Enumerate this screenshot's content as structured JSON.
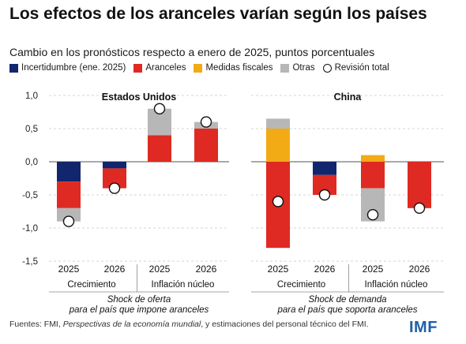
{
  "title": "Los efectos de los aranceles varían según los países",
  "subtitle": "Cambio en los pronósticos respecto a enero de 2025, puntos porcentuales",
  "legend": [
    {
      "label": "Incertidumbre (ene. 2025)",
      "color": "#12266e",
      "shape": "square"
    },
    {
      "label": "Aranceles",
      "color": "#de2a22",
      "shape": "square"
    },
    {
      "label": "Medidas fiscales",
      "color": "#f2ab14",
      "shape": "square"
    },
    {
      "label": "Otras",
      "color": "#b7b7b7",
      "shape": "square"
    },
    {
      "label": "Revisión total",
      "color": "#ffffff",
      "shape": "circle"
    }
  ],
  "source": {
    "prefix": "Fuentes: FMI, ",
    "italic": "Perspectivas de la economía mundial",
    "suffix": ", y estimaciones del personal técnico del FMI."
  },
  "logo": "IMF",
  "chart_data": {
    "type": "bar",
    "stacked": true,
    "ylim": [
      -1.5,
      1.0
    ],
    "yticks": [
      "1,0",
      "0,5",
      "0,0",
      "-0,5",
      "-1,0",
      "-1,5"
    ],
    "grid": true,
    "legend_position": "top",
    "series_names": [
      "Incertidumbre (ene. 2025)",
      "Aranceles",
      "Medidas fiscales",
      "Otras"
    ],
    "total_name": "Revisión total",
    "panels": [
      {
        "title": "Estados Unidos",
        "groups": [
          "Crecimiento",
          "Inflación núcleo"
        ],
        "caption": [
          "Shock de oferta",
          "para el país que impone aranceles"
        ],
        "bars": [
          {
            "year": "2025",
            "group": "Crecimiento",
            "Incertidumbre": -0.3,
            "Aranceles": -0.4,
            "Medidas fiscales": 0.0,
            "Otras": -0.2,
            "total": -0.9
          },
          {
            "year": "2026",
            "group": "Crecimiento",
            "Incertidumbre": -0.1,
            "Aranceles": -0.3,
            "Medidas fiscales": 0.0,
            "Otras": 0.0,
            "total": -0.4
          },
          {
            "year": "2025",
            "group": "Inflación núcleo",
            "Incertidumbre": 0.0,
            "Aranceles": 0.4,
            "Medidas fiscales": 0.0,
            "Otras": 0.4,
            "total": 0.8
          },
          {
            "year": "2026",
            "group": "Inflación núcleo",
            "Incertidumbre": 0.0,
            "Aranceles": 0.5,
            "Medidas fiscales": 0.0,
            "Otras": 0.1,
            "total": 0.6
          }
        ]
      },
      {
        "title": "China",
        "groups": [
          "Crecimiento",
          "Inflación núcleo"
        ],
        "caption": [
          "Shock de demanda",
          "para el país que soporta aranceles"
        ],
        "bars": [
          {
            "year": "2025",
            "group": "Crecimiento",
            "Incertidumbre": 0.0,
            "Aranceles": -1.3,
            "Medidas fiscales": 0.5,
            "Otras": 0.15,
            "total": -0.6
          },
          {
            "year": "2026",
            "group": "Crecimiento",
            "Incertidumbre": -0.2,
            "Aranceles": -0.3,
            "Medidas fiscales": 0.0,
            "Otras": 0.0,
            "total": -0.5
          },
          {
            "year": "2025",
            "group": "Inflación núcleo",
            "Incertidumbre": 0.0,
            "Aranceles": -0.4,
            "Medidas fiscales": 0.1,
            "Otras": -0.5,
            "total": -0.8
          },
          {
            "year": "2026",
            "group": "Inflación núcleo",
            "Incertidumbre": 0.0,
            "Aranceles": -0.7,
            "Medidas fiscales": 0.0,
            "Otras": 0.0,
            "total": -0.7
          }
        ]
      }
    ]
  }
}
